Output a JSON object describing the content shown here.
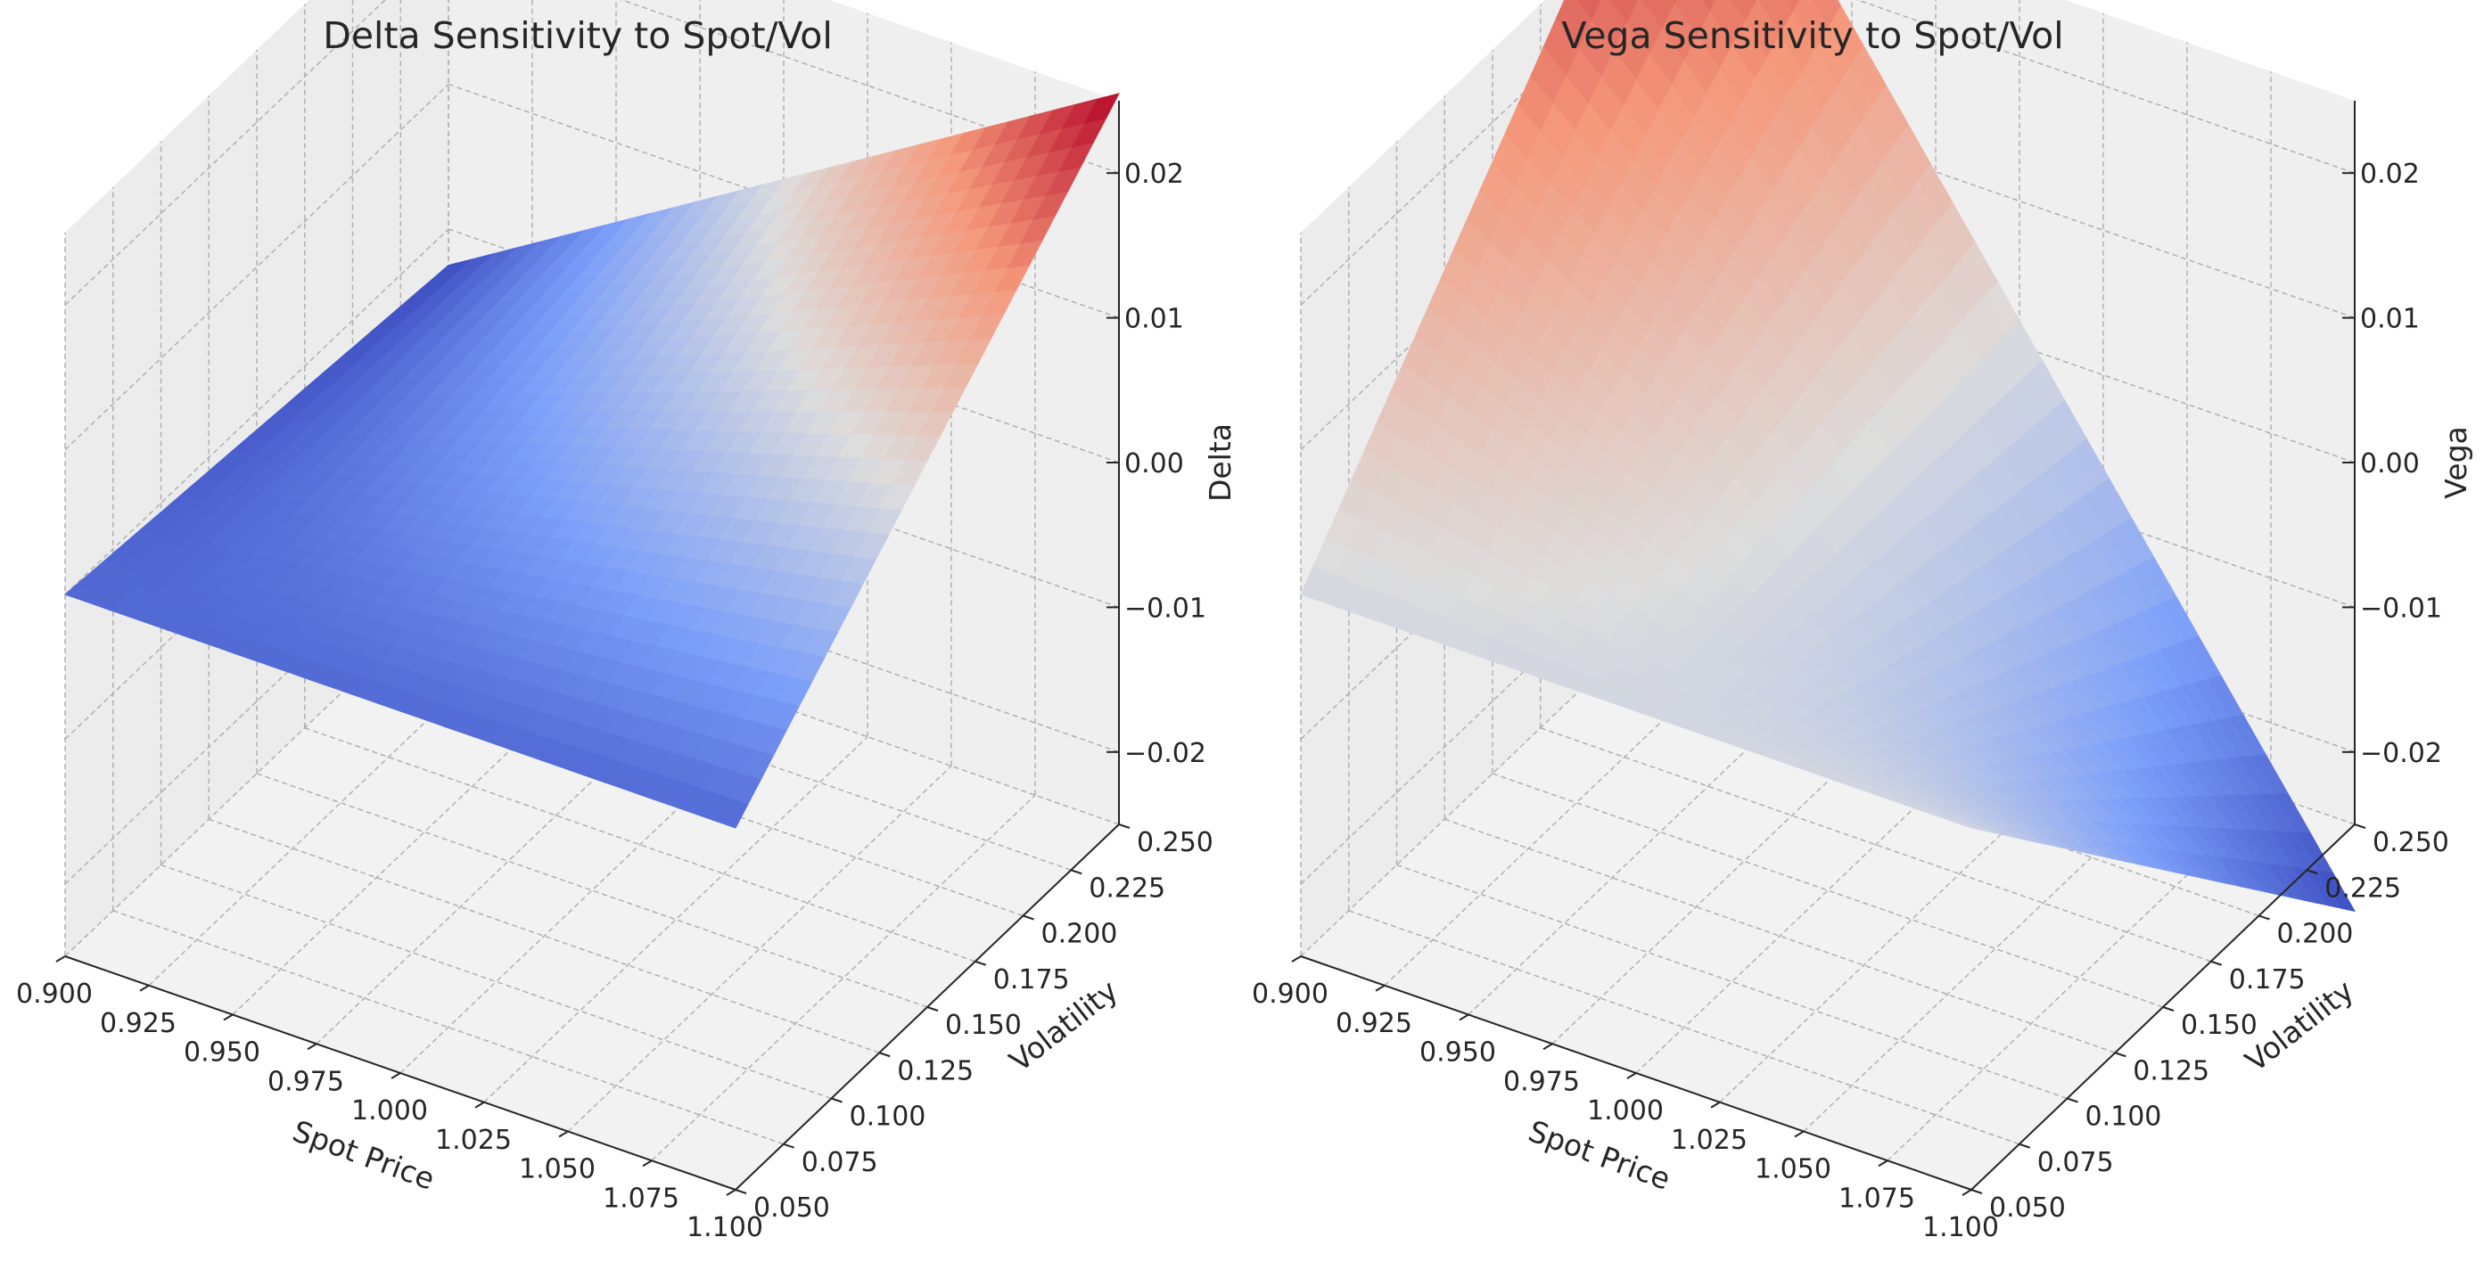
{
  "chart_data": [
    {
      "type": "surface",
      "title": "Delta Sensitivity to Spot/Vol",
      "xlabel": "Spot Price",
      "ylabel": "Volatility",
      "zlabel": "Delta",
      "xlim": [
        0.9,
        1.1
      ],
      "ylim": [
        0.05,
        0.25
      ],
      "zlim": [
        -0.025,
        0.025
      ],
      "x_ticks": [
        "0.900",
        "0.925",
        "0.950",
        "0.975",
        "1.000",
        "1.025",
        "1.050",
        "1.075",
        "1.100"
      ],
      "y_ticks": [
        "0.050",
        "0.075",
        "0.100",
        "0.125",
        "0.150",
        "0.175",
        "0.200",
        "0.225",
        "0.250"
      ],
      "z_ticks": [
        "−0.02",
        "−0.01",
        "0.00",
        "0.01",
        "0.02"
      ],
      "colormap": "coolwarm",
      "grid": true,
      "corner_values": {
        "spot_0.900_vol_0.050": 0.0,
        "spot_1.100_vol_0.050": 0.0,
        "spot_0.900_vol_0.250": -0.0025,
        "spot_1.100_vol_0.250": 0.0255
      }
    },
    {
      "type": "surface",
      "title": "Vega Sensitivity to Spot/Vol",
      "xlabel": "Spot Price",
      "ylabel": "Volatility",
      "zlabel": "Vega",
      "xlim": [
        0.9,
        1.1
      ],
      "ylim": [
        0.05,
        0.25
      ],
      "zlim": [
        -0.025,
        0.025
      ],
      "x_ticks": [
        "0.900",
        "0.925",
        "0.950",
        "0.975",
        "1.000",
        "1.025",
        "1.050",
        "1.075",
        "1.100"
      ],
      "y_ticks": [
        "0.050",
        "0.075",
        "0.100",
        "0.125",
        "0.150",
        "0.175",
        "0.200",
        "0.225",
        "0.250"
      ],
      "z_ticks": [
        "−0.02",
        "−0.01",
        "0.00",
        "0.01",
        "0.02"
      ],
      "colormap": "coolwarm",
      "grid": true,
      "corner_values": {
        "spot_0.900_vol_0.050": 0.0,
        "spot_1.100_vol_0.050": 0.0,
        "spot_0.900_vol_0.250": 0.0345,
        "spot_1.100_vol_0.250": -0.031
      }
    }
  ]
}
